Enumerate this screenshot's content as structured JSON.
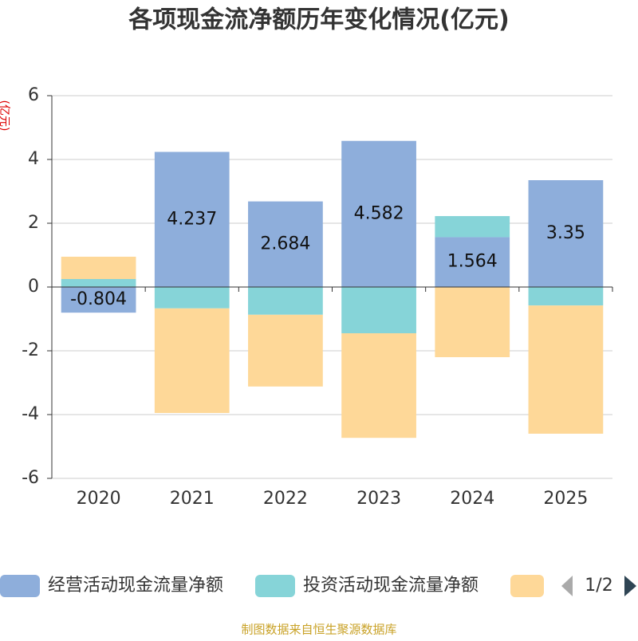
{
  "chart_data": {
    "type": "bar",
    "stacked": true,
    "title": "各项现金流净额历年变化情况(亿元)",
    "y_label": "(亿元)",
    "categories": [
      "2020",
      "2021",
      "2022",
      "2023",
      "2024",
      "2025"
    ],
    "series": [
      {
        "name": "经营活动现金流量净额",
        "color": "#8eaedb",
        "values": [
          -0.804,
          4.237,
          2.684,
          4.582,
          1.564,
          3.35
        ],
        "show_labels": true
      },
      {
        "name": "投资活动现金流量净额",
        "color": "#86d4d8",
        "values": [
          0.25,
          -0.67,
          -0.87,
          -1.45,
          0.66,
          -0.58
        ]
      },
      {
        "color": "#fed898",
        "values": [
          0.7,
          -3.28,
          -2.25,
          -3.28,
          -2.2,
          -4.02
        ]
      }
    ],
    "ylim": [
      -6,
      6
    ],
    "yticks": [
      -6,
      -4,
      -2,
      0,
      2,
      4,
      6
    ],
    "grid": true,
    "legend_page": "1/2",
    "source": "制图数据来自恒生聚源数据库"
  }
}
